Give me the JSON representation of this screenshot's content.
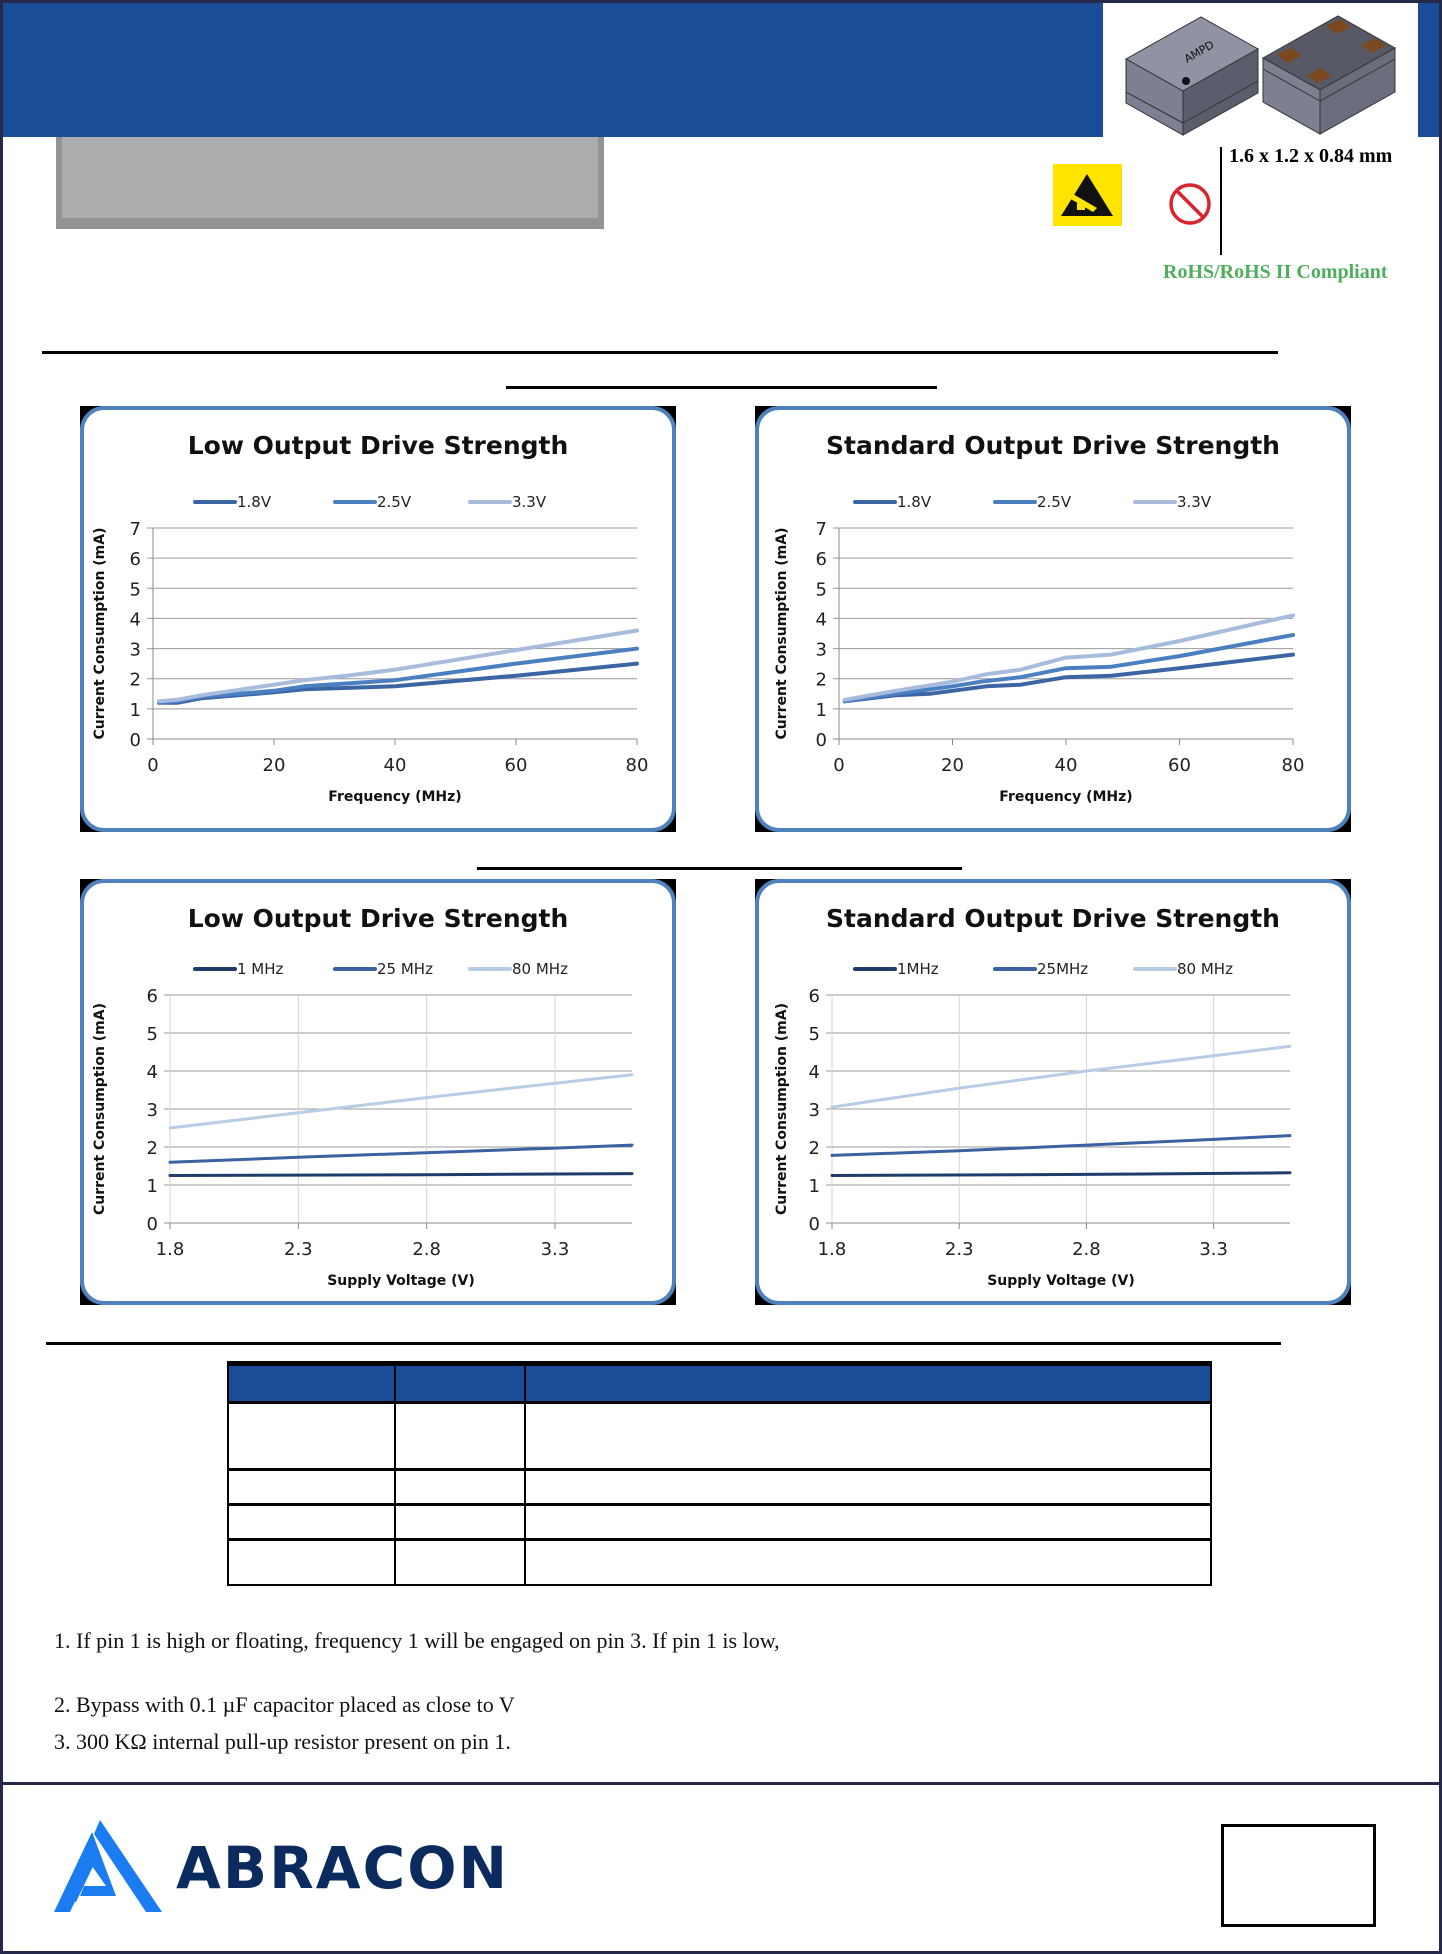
{
  "header": {
    "brand_color": "#1b4c97",
    "product_image": "oscillator-package-render",
    "chip_marking": "AMPD"
  },
  "badges": {
    "esd_icon": "esd-warning-icon",
    "lead_free_icon": "no-lead-icon",
    "dimensions": "1.6 x 1.2 x 0.84 mm",
    "rohs": "RoHS/RoHS II Compliant",
    "rohs_color": "#4fae5c"
  },
  "chart_data": [
    {
      "type": "line",
      "title": "Low Output Drive Strength",
      "xlabel": "Frequency (MHz)",
      "ylabel": "Current Consumption (mA)",
      "xlim": [
        0,
        80
      ],
      "ylim": [
        0,
        7
      ],
      "xticks": [
        "0",
        "20",
        "40",
        "60",
        "80"
      ],
      "yticks": [
        "0",
        "1",
        "2",
        "3",
        "4",
        "5",
        "6",
        "7"
      ],
      "grid": "horizontal",
      "legend": "top",
      "series": [
        {
          "name": "1.8V",
          "color": "#3c66a3",
          "x": [
            1,
            4,
            8,
            20,
            25,
            40,
            60,
            80
          ],
          "values": [
            1.2,
            1.2,
            1.35,
            1.55,
            1.65,
            1.75,
            2.1,
            2.5
          ]
        },
        {
          "name": "2.5V",
          "color": "#4a7fc1",
          "x": [
            1,
            4,
            8,
            20,
            25,
            40,
            60,
            80
          ],
          "values": [
            1.2,
            1.25,
            1.4,
            1.6,
            1.75,
            1.95,
            2.5,
            3.0
          ]
        },
        {
          "name": "3.3V",
          "color": "#a7bcdc",
          "x": [
            1,
            4,
            8,
            20,
            25,
            32,
            40,
            60,
            80
          ],
          "values": [
            1.25,
            1.3,
            1.45,
            1.8,
            1.95,
            2.1,
            2.3,
            2.95,
            3.6
          ]
        }
      ]
    },
    {
      "type": "line",
      "title": "Standard Output Drive Strength",
      "xlabel": "Frequency (MHz)",
      "ylabel": "Current Consumption (mA)",
      "xlim": [
        0,
        80
      ],
      "ylim": [
        0,
        7
      ],
      "xticks": [
        "0",
        "20",
        "40",
        "60",
        "80"
      ],
      "yticks": [
        "0",
        "1",
        "2",
        "3",
        "4",
        "5",
        "6",
        "7"
      ],
      "grid": "horizontal",
      "legend": "top",
      "series": [
        {
          "name": "1.8V",
          "color": "#3c66a3",
          "x": [
            1,
            10,
            16,
            20,
            26,
            32,
            40,
            48,
            60,
            80
          ],
          "values": [
            1.25,
            1.45,
            1.5,
            1.6,
            1.75,
            1.8,
            2.05,
            2.1,
            2.35,
            2.8
          ]
        },
        {
          "name": "2.5V",
          "color": "#4a7fc1",
          "x": [
            1,
            10,
            20,
            25,
            32,
            40,
            48,
            60,
            80
          ],
          "values": [
            1.25,
            1.5,
            1.75,
            1.9,
            2.05,
            2.35,
            2.4,
            2.75,
            3.45
          ]
        },
        {
          "name": "3.3V",
          "color": "#a7bcdc",
          "x": [
            1,
            10,
            20,
            26,
            32,
            40,
            48,
            60,
            80
          ],
          "values": [
            1.3,
            1.6,
            1.9,
            2.15,
            2.3,
            2.7,
            2.8,
            3.25,
            4.1
          ]
        }
      ]
    },
    {
      "type": "line",
      "title": "Low Output Drive Strength",
      "xlabel": "Supply Voltage (V)",
      "ylabel": "Current Consumption (mA)",
      "xlim": [
        1.8,
        3.6
      ],
      "ylim": [
        0,
        6
      ],
      "xtick_values": [
        1.8,
        2.3,
        2.8,
        3.3
      ],
      "xticks": [
        "1.8",
        "2.3",
        "2.8",
        "3.3"
      ],
      "yticks": [
        "0",
        "1",
        "2",
        "3",
        "4",
        "5",
        "6"
      ],
      "grid": "both",
      "legend": "top",
      "series": [
        {
          "name": "1 MHz",
          "color": "#1f3d6b",
          "x": [
            1.8,
            2.8,
            3.6
          ],
          "values": [
            1.25,
            1.27,
            1.3
          ]
        },
        {
          "name": "25 MHz",
          "color": "#3b62a0",
          "x": [
            1.8,
            2.3,
            2.8,
            3.3,
            3.6
          ],
          "values": [
            1.6,
            1.73,
            1.85,
            1.97,
            2.05
          ]
        },
        {
          "name": "80 MHz",
          "color": "#b9cce6",
          "x": [
            1.8,
            2.3,
            2.8,
            3.3,
            3.6
          ],
          "values": [
            2.5,
            2.9,
            3.3,
            3.68,
            3.9
          ]
        }
      ]
    },
    {
      "type": "line",
      "title": "Standard Output Drive Strength",
      "xlabel": "Supply Voltage (V)",
      "ylabel": "Current Consumption (mA)",
      "xlim": [
        1.8,
        3.6
      ],
      "ylim": [
        0,
        6
      ],
      "xtick_values": [
        1.8,
        2.3,
        2.8,
        3.3
      ],
      "xticks": [
        "1.8",
        "2.3",
        "2.8",
        "3.3"
      ],
      "yticks": [
        "0",
        "1",
        "2",
        "3",
        "4",
        "5",
        "6"
      ],
      "grid": "both",
      "legend": "top",
      "series": [
        {
          "name": "1MHz",
          "color": "#1f3d6b",
          "x": [
            1.8,
            2.8,
            3.6
          ],
          "values": [
            1.25,
            1.28,
            1.32
          ]
        },
        {
          "name": "25MHz",
          "color": "#3b62a0",
          "x": [
            1.8,
            2.3,
            2.8,
            3.3,
            3.6
          ],
          "values": [
            1.78,
            1.9,
            2.05,
            2.2,
            2.3
          ]
        },
        {
          "name": "80 MHz",
          "color": "#b9cce6",
          "x": [
            1.8,
            2.3,
            2.8,
            3.3,
            3.6
          ],
          "values": [
            3.05,
            3.55,
            4.0,
            4.4,
            4.65
          ]
        }
      ]
    }
  ],
  "notes": [
    "1. If pin 1 is high or floating, frequency 1 will be engaged on pin 3. If pin 1 is low,",
    "2. Bypass with 0.1 µF capacitor placed as close to V",
    "3. 300 KΩ internal pull-up resistor present on pin 1."
  ],
  "footer": {
    "logo_text": "ABRACON",
    "logo_color": "#0b2a5e",
    "logo_icon_color": "#1a7cf0"
  }
}
